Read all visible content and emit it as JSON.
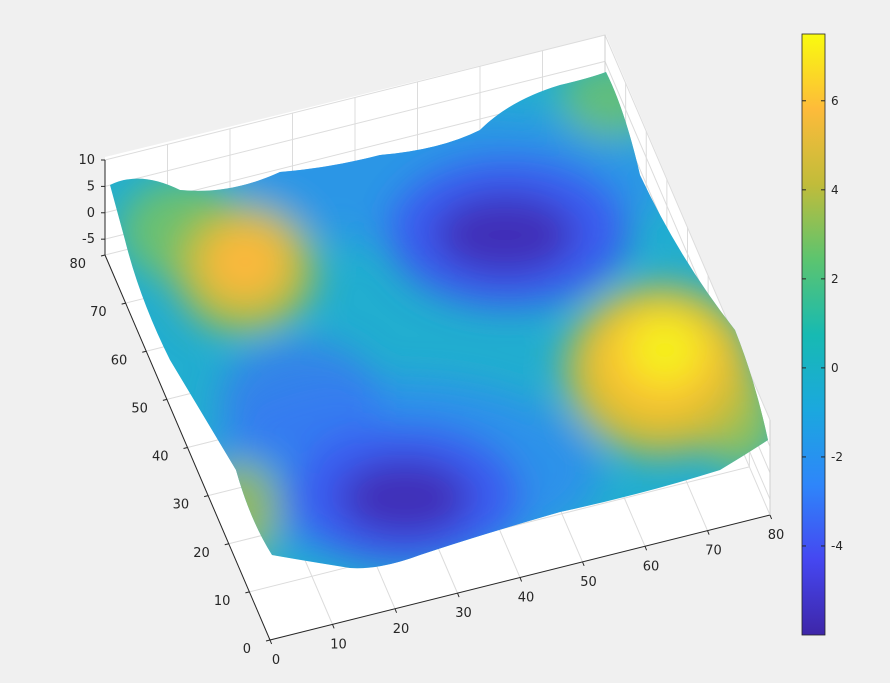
{
  "figure": {
    "background": "#f0f0f0",
    "axes_background": "#ffffff",
    "colormap": "parula"
  },
  "chart_data": {
    "type": "surface",
    "title": "",
    "xlabel": "",
    "ylabel": "",
    "zlabel": "",
    "grid": true,
    "view": "3-D oblique, looking down; x axis runs along the front-bottom edge, y axis along the left edge",
    "xlim": [
      0,
      80
    ],
    "ylim": [
      0,
      80
    ],
    "zlim": [
      -8,
      10
    ],
    "x_ticks": [
      0,
      10,
      20,
      30,
      40,
      50,
      60,
      70,
      80
    ],
    "y_ticks": [
      0,
      10,
      20,
      30,
      40,
      50,
      60,
      70,
      80
    ],
    "z_ticks": [
      -5,
      0,
      5,
      10
    ],
    "x_tick_labels": [
      "0",
      "10",
      "20",
      "30",
      "40",
      "50",
      "60",
      "70",
      "80"
    ],
    "y_tick_labels": [
      "0",
      "10",
      "20",
      "30",
      "40",
      "50",
      "60",
      "70",
      "80"
    ],
    "z_tick_labels": [
      "-5",
      "0",
      "5",
      "10"
    ],
    "surface_features": [
      {
        "kind": "peak",
        "x": 12,
        "y": 68,
        "z": 5
      },
      {
        "kind": "peak",
        "x": 75,
        "y": 40,
        "z": 7
      },
      {
        "kind": "trough",
        "x": 50,
        "y": 70,
        "z": -6
      },
      {
        "kind": "trough",
        "x": 30,
        "y": 25,
        "z": -5.5
      }
    ],
    "colorbar": {
      "limits": [
        -6,
        7.5
      ],
      "ticks": [
        -4,
        -2,
        0,
        2,
        4,
        6
      ],
      "tick_labels": [
        "-4",
        "-2",
        "0",
        "2",
        "4",
        "6"
      ]
    }
  }
}
